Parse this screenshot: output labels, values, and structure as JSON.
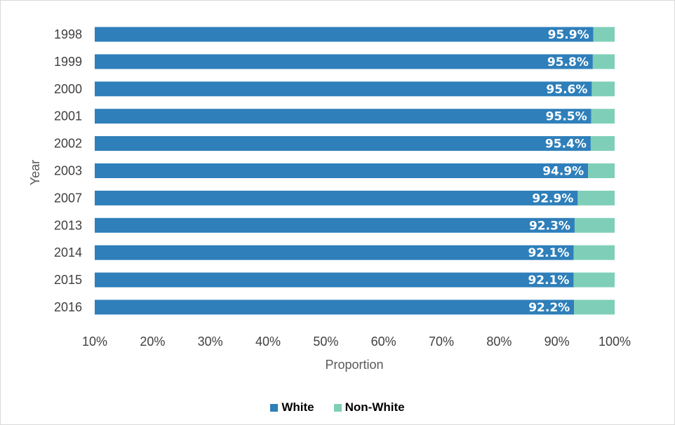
{
  "chart_data": {
    "type": "bar",
    "orientation": "horizontal",
    "stacked": "percent",
    "categories": [
      "1998",
      "1999",
      "2000",
      "2001",
      "2002",
      "2003",
      "2007",
      "2013",
      "2014",
      "2015",
      "2016"
    ],
    "series": [
      {
        "name": "White",
        "values": [
          95.9,
          95.8,
          95.6,
          95.5,
          95.4,
          94.9,
          92.9,
          92.3,
          92.1,
          92.1,
          92.2
        ],
        "color": "#2e7fba"
      },
      {
        "name": "Non-White",
        "values": [
          4.1,
          4.2,
          4.4,
          4.5,
          4.6,
          5.1,
          7.1,
          7.7,
          7.9,
          7.9,
          7.8
        ],
        "color": "#7fcfb8"
      }
    ],
    "data_labels": [
      "95.9%",
      "95.8%",
      "95.6%",
      "95.5%",
      "95.4%",
      "94.9%",
      "92.9%",
      "92.3%",
      "92.1%",
      "92.1%",
      "92.2%"
    ],
    "xlabel": "Proportion",
    "ylabel": "Year",
    "xlim": [
      10,
      100
    ],
    "xticks": [
      "10%",
      "20%",
      "30%",
      "40%",
      "50%",
      "60%",
      "70%",
      "80%",
      "90%",
      "100%"
    ],
    "grid": false,
    "legend": "bottom"
  }
}
